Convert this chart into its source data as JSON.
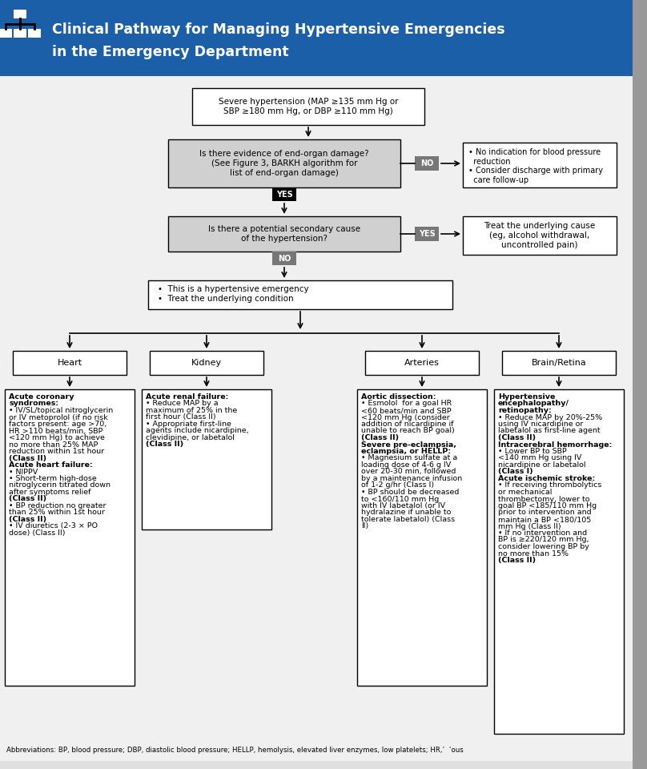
{
  "title_line1": "Clinical Pathway for Managing Hypertensive Emergencies",
  "title_line2": "in the Emergency Department",
  "header_bg": "#1a5fa8",
  "header_text_color": "#ffffff",
  "bg_color": "#f0f0f0",
  "box1_text": "Severe hypertension (MAP ≥135 mm Hg or\nSBP ≥180 mm Hg, or DBP ≥110 mm Hg)",
  "box2_text": "Is there evidence of end-organ damage?\n(See Figure 3, BARKH algorithm for\nlist of end-organ damage)",
  "box2_bg": "#d0d0d0",
  "box3_text": "Is there a potential secondary cause\nof the hypertension?",
  "box3_bg": "#d0d0d0",
  "box4_text": "•  This is a hypertensive emergency\n•  Treat the underlying condition",
  "no_right_text": "• No indication for blood pressure\n  reduction\n• Consider discharge with primary\n  care follow-up",
  "yes_right_text": "Treat the underlying cause\n(eg, alcohol withdrawal,\nuncontrolled pain)",
  "col_labels": [
    "Heart",
    "Kidney",
    "Arteries",
    "Brain/Retina"
  ],
  "heart_text_lines": [
    [
      "Acute coronary",
      "bold"
    ],
    [
      "syndromes:",
      "bold"
    ],
    [
      "• IV/SL/topical nitroglycerin",
      "normal"
    ],
    [
      "or IV metoprolol (if no risk",
      "normal"
    ],
    [
      "factors present: age >70,",
      "normal"
    ],
    [
      "HR >110 beats/min, SBP",
      "normal"
    ],
    [
      "<120 mm Hg) to achieve",
      "normal"
    ],
    [
      "no more than 25% MAP",
      "normal"
    ],
    [
      "reduction within 1st hour",
      "normal"
    ],
    [
      "(Class II)",
      "bold"
    ],
    [
      "Acute heart failure:",
      "bold"
    ],
    [
      "• NIPPV",
      "normal"
    ],
    [
      "• Short-term high-dose",
      "normal"
    ],
    [
      "nitroglycerin titrated down",
      "normal"
    ],
    [
      "after symptoms relief",
      "normal"
    ],
    [
      "(Class II)",
      "bold"
    ],
    [
      "• BP reduction no greater",
      "normal"
    ],
    [
      "than 25% within 1st hour",
      "normal"
    ],
    [
      "(Class II)",
      "bold"
    ],
    [
      "• IV diuretics (2-3 × PO",
      "normal"
    ],
    [
      "dose) (Class II)",
      "normal"
    ]
  ],
  "kidney_text_lines": [
    [
      "Acute renal failure:",
      "bold"
    ],
    [
      "• Reduce MAP by a",
      "normal"
    ],
    [
      "maximum of 25% in the",
      "normal"
    ],
    [
      "first hour (Class II)",
      "normal"
    ],
    [
      "• Appropriate first-line",
      "normal"
    ],
    [
      "agents include nicardipine,",
      "normal"
    ],
    [
      "clevidipine, or labetalol",
      "normal"
    ],
    [
      "(Class II)",
      "bold"
    ]
  ],
  "arteries_text_lines": [
    [
      "Aortic dissection:",
      "bold"
    ],
    [
      "• Esmolol  for a goal HR",
      "normal"
    ],
    [
      "<60 beats/min and SBP",
      "normal"
    ],
    [
      "<120 mm Hg (consider",
      "normal"
    ],
    [
      "addition of nicardipine if",
      "normal"
    ],
    [
      "unable to reach BP goal)",
      "normal"
    ],
    [
      "(Class II)",
      "bold"
    ],
    [
      "Severe pre-eclampsia,",
      "bold"
    ],
    [
      "eclampsia, or HELLP:",
      "bold"
    ],
    [
      "• Magnesium sulfate at a",
      "normal"
    ],
    [
      "loading dose of 4-6 g IV",
      "normal"
    ],
    [
      "over 20-30 min, followed",
      "normal"
    ],
    [
      "by a maintenance infusion",
      "normal"
    ],
    [
      "of 1-2 g/hr (Class I)",
      "normal"
    ],
    [
      "• BP should be decreased",
      "normal"
    ],
    [
      "to <160/110 mm Hg",
      "normal"
    ],
    [
      "with IV labetalol (or IV",
      "normal"
    ],
    [
      "hydralazine if unable to",
      "normal"
    ],
    [
      "tolerate labetalol) (Class",
      "normal"
    ],
    [
      "II)",
      "normal"
    ]
  ],
  "brain_text_lines": [
    [
      "Hypertensive",
      "bold"
    ],
    [
      "encephalopathy/",
      "bold"
    ],
    [
      "retinopathy:",
      "bold"
    ],
    [
      "• Reduce MAP by 20%-25%",
      "normal"
    ],
    [
      "using IV nicardipine or",
      "normal"
    ],
    [
      "labetalol as first-line agent",
      "normal"
    ],
    [
      "(Class II)",
      "bold"
    ],
    [
      "Intracerebral hemorrhage:",
      "bold"
    ],
    [
      "• Lower BP to SBP",
      "normal"
    ],
    [
      "<140 mm Hg using IV",
      "normal"
    ],
    [
      "nicardipine or labetalol",
      "normal"
    ],
    [
      "(Class I)",
      "bold"
    ],
    [
      "Acute ischemic stroke:",
      "bold"
    ],
    [
      "• If receiving thrombolytics",
      "normal"
    ],
    [
      "or mechanical",
      "normal"
    ],
    [
      "thrombectomy, lower to",
      "normal"
    ],
    [
      "goal BP <185/110 mm Hg",
      "normal"
    ],
    [
      "prior to intervention and",
      "normal"
    ],
    [
      "maintain a BP <180/105",
      "normal"
    ],
    [
      "mm Hg (Class II)",
      "normal"
    ],
    [
      "• If no intervention and",
      "normal"
    ],
    [
      "BP is ≥220/120 mm Hg,",
      "normal"
    ],
    [
      "consider lowering BP by",
      "normal"
    ],
    [
      "no more than 15%",
      "normal"
    ],
    [
      "(Class II)",
      "bold"
    ]
  ]
}
